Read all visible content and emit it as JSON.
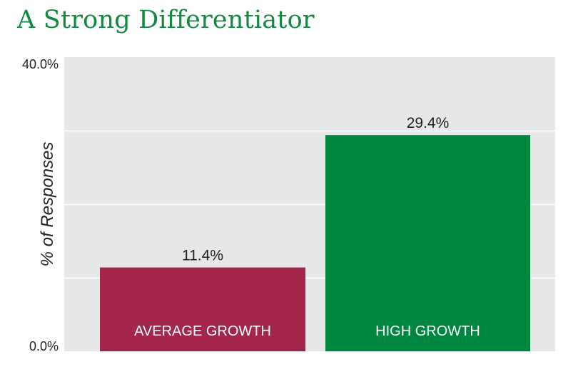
{
  "chart_data": {
    "type": "bar",
    "title": "A Strong Differentiator",
    "ylabel": "% of Responses",
    "xlabel": "",
    "categories": [
      "AVERAGE GROWTH",
      "HIGH GROWTH"
    ],
    "values": [
      11.4,
      29.4
    ],
    "data_labels": [
      "11.4%",
      "29.4%"
    ],
    "bar_colors": [
      "#a4264b",
      "#00873f"
    ],
    "ylim": [
      0,
      40
    ],
    "y_ticks": [
      0,
      10,
      20,
      30,
      40
    ],
    "y_tick_labels": [
      "0.0%",
      "",
      "",
      "",
      "40.0%"
    ],
    "grid": true,
    "plot_background": "#e6e7e8",
    "title_color": "#118a3f"
  }
}
